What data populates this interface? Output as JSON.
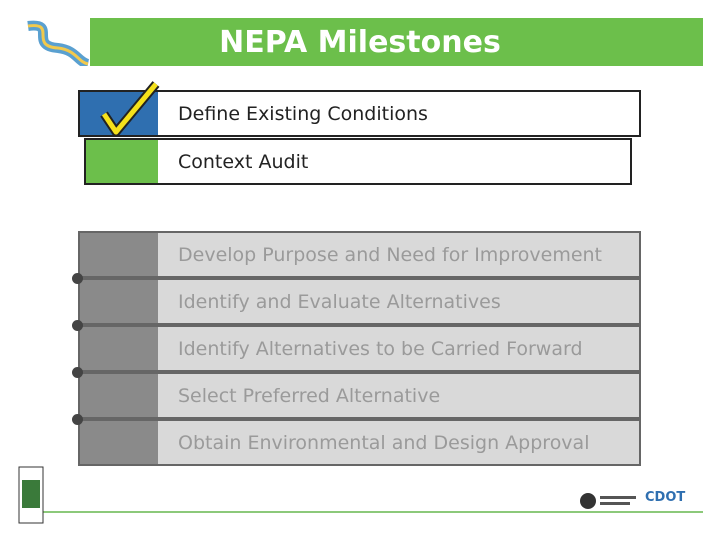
{
  "header": {
    "title": "NEPA Milestones"
  },
  "completed": [
    "Define Existing Conditions",
    "Context Audit"
  ],
  "upcoming": [
    "Develop Purpose and Need for Improvement",
    "Identify and Evaluate Alternatives",
    "Identify Alternatives to be Carried Forward",
    "Select Preferred Alternative",
    "Obtain Environmental and Design Approval"
  ],
  "footer": {
    "logo": "CDOT"
  }
}
